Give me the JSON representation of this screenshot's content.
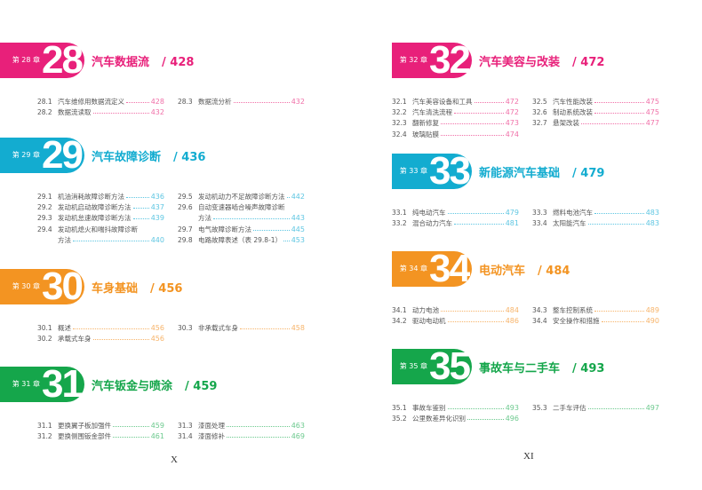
{
  "colors": {
    "pink": "#e8207a",
    "cyan": "#13acd0",
    "orange": "#f39422",
    "green": "#15a64b",
    "pink_light": "#f070a8",
    "cyan_light": "#5ec6e2",
    "orange_light": "#f7b46a",
    "green_light": "#6cc98e"
  },
  "left_page": {
    "folio": "X",
    "chapters": [
      {
        "number": "28",
        "label": "第 28 章",
        "title": "汽车数据流",
        "page": "/ 428",
        "color": "pink",
        "col1": [
          {
            "num": "28.1",
            "title": "汽车维修用数据流定义",
            "page": "428"
          },
          {
            "num": "28.2",
            "title": "数据流读取",
            "page": "432"
          }
        ],
        "col2": [
          {
            "num": "28.3",
            "title": "数据流分析",
            "page": "432"
          }
        ]
      },
      {
        "number": "29",
        "label": "第 29 章",
        "title": "汽车故障诊断",
        "page": "/ 436",
        "color": "cyan",
        "col1": [
          {
            "num": "29.1",
            "title": "机油消耗故障诊断方法",
            "page": "436"
          },
          {
            "num": "29.2",
            "title": "发动机启动故障诊断方法",
            "page": "437"
          },
          {
            "num": "29.3",
            "title": "发动机怠速故障诊断方法",
            "page": "439"
          },
          {
            "num": "29.4",
            "title": "发动机熄火和喘抖故障诊断",
            "cont": "方法",
            "page": "440"
          }
        ],
        "col2": [
          {
            "num": "29.5",
            "title": "发动机动力不足故障诊断方法",
            "page": "442"
          },
          {
            "num": "29.6",
            "title": "自动变速器啮合噪声故障诊断",
            "cont": "方法",
            "page": "443"
          },
          {
            "num": "29.7",
            "title": "电气故障诊断方法",
            "page": "445"
          },
          {
            "num": "29.8",
            "title": "电路故障表述（表 29.8-1）",
            "page": "453"
          }
        ]
      },
      {
        "number": "30",
        "label": "第 30 章",
        "title": "车身基础",
        "page": "/ 456",
        "color": "orange",
        "col1": [
          {
            "num": "30.1",
            "title": "概述",
            "page": "456"
          },
          {
            "num": "30.2",
            "title": "承载式车身",
            "page": "456"
          }
        ],
        "col2": [
          {
            "num": "30.3",
            "title": "非承载式车身",
            "page": "458"
          }
        ]
      },
      {
        "number": "31",
        "label": "第 31 章",
        "title": "汽车钣金与喷涂",
        "page": "/ 459",
        "color": "green",
        "col1": [
          {
            "num": "31.1",
            "title": "更换翼子板加强件",
            "page": "459"
          },
          {
            "num": "31.2",
            "title": "更换侧围钣金部件",
            "page": "461"
          }
        ],
        "col2": [
          {
            "num": "31.3",
            "title": "漆面处理",
            "page": "463"
          },
          {
            "num": "31.4",
            "title": "漆面修补",
            "page": "469"
          }
        ]
      }
    ]
  },
  "right_page": {
    "folio": "XI",
    "chapters": [
      {
        "number": "32",
        "label": "第 32 章",
        "title": "汽车美容与改装",
        "page": "/ 472",
        "color": "pink",
        "col1": [
          {
            "num": "32.1",
            "title": "汽车美容设备和工具",
            "page": "472"
          },
          {
            "num": "32.2",
            "title": "汽车清洗流程",
            "page": "472"
          },
          {
            "num": "32.3",
            "title": "翻新修复",
            "page": "473"
          },
          {
            "num": "32.4",
            "title": "玻璃贴膜",
            "page": "474"
          }
        ],
        "col2": [
          {
            "num": "32.5",
            "title": "汽车性能改装",
            "page": "475"
          },
          {
            "num": "32.6",
            "title": "制动系统改装",
            "page": "475"
          },
          {
            "num": "32.7",
            "title": "悬架改装",
            "page": "477"
          }
        ]
      },
      {
        "number": "33",
        "label": "第 33 章",
        "title": "新能源汽车基础",
        "page": "/ 479",
        "color": "cyan",
        "col1": [
          {
            "num": "33.1",
            "title": "纯电动汽车",
            "page": "479"
          },
          {
            "num": "33.2",
            "title": "混合动力汽车",
            "page": "481"
          }
        ],
        "col2": [
          {
            "num": "33.3",
            "title": "燃料电池汽车",
            "page": "483"
          },
          {
            "num": "33.4",
            "title": "太阳能汽车",
            "page": "483"
          }
        ]
      },
      {
        "number": "34",
        "label": "第 34 章",
        "title": "电动汽车",
        "page": "/ 484",
        "color": "orange",
        "col1": [
          {
            "num": "34.1",
            "title": "动力电池",
            "page": "484"
          },
          {
            "num": "34.2",
            "title": "驱动电动机",
            "page": "486"
          }
        ],
        "col2": [
          {
            "num": "34.3",
            "title": "整车控制系统",
            "page": "489"
          },
          {
            "num": "34.4",
            "title": "安全操作和措施",
            "page": "490"
          }
        ]
      },
      {
        "number": "35",
        "label": "第 35 章",
        "title": "事故车与二手车",
        "page": "/ 493",
        "color": "green",
        "col1": [
          {
            "num": "35.1",
            "title": "事故车鉴别",
            "page": "493"
          },
          {
            "num": "35.2",
            "title": "公里数差异化识别",
            "page": "496"
          }
        ],
        "col2": [
          {
            "num": "35.3",
            "title": "二手车评估",
            "page": "497"
          }
        ]
      }
    ]
  }
}
